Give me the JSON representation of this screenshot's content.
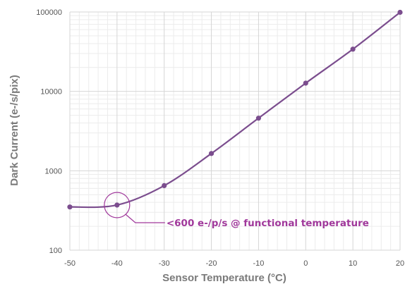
{
  "chart_data": {
    "type": "line",
    "xlabel": "Sensor Temperature (°C)",
    "ylabel": "Dark Current (e-/s/pix)",
    "xlim": [
      -50,
      20
    ],
    "ylim": [
      100,
      100000
    ],
    "y_scale": "log",
    "x_ticks": [
      "-50",
      "-40",
      "-30",
      "-20",
      "-10",
      "0",
      "10",
      "20"
    ],
    "y_ticks": [
      "100",
      "1000",
      "10000",
      "100000"
    ],
    "grid": true,
    "series": [
      {
        "x": [
          -50,
          -40,
          -30,
          -20,
          -10,
          0,
          10,
          20
        ],
        "y": [
          350,
          370,
          650,
          1650,
          4600,
          12700,
          34000,
          99000
        ]
      }
    ],
    "annotations": [
      {
        "text": "<600 e-/p/s @ functional temperature",
        "x": -40,
        "y": 370
      }
    ]
  },
  "colors": {
    "series": "#7b4d8e",
    "annotation": "#a0389b",
    "grid_major": "#d6d6d6",
    "grid_minor": "#ececec",
    "axis_text": "#7a7a7a"
  }
}
